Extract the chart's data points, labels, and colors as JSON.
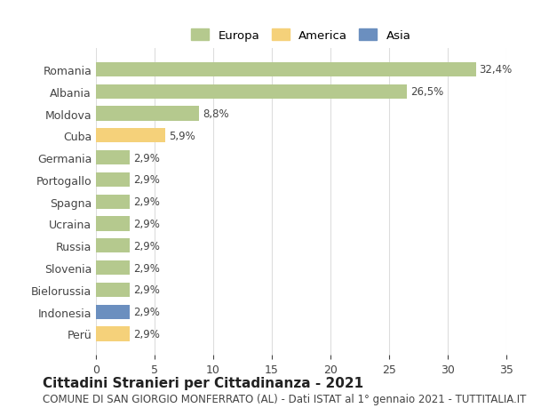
{
  "categories": [
    "Romania",
    "Albania",
    "Moldova",
    "Cuba",
    "Germania",
    "Portogallo",
    "Spagna",
    "Ucraina",
    "Russia",
    "Slovenia",
    "Bielorussia",
    "Indonesia",
    "Perü"
  ],
  "values": [
    32.4,
    26.5,
    8.8,
    5.9,
    2.9,
    2.9,
    2.9,
    2.9,
    2.9,
    2.9,
    2.9,
    2.9,
    2.9
  ],
  "labels": [
    "32,4%",
    "26,5%",
    "8,8%",
    "5,9%",
    "2,9%",
    "2,9%",
    "2,9%",
    "2,9%",
    "2,9%",
    "2,9%",
    "2,9%",
    "2,9%",
    "2,9%"
  ],
  "continents": [
    "Europa",
    "Europa",
    "Europa",
    "America",
    "Europa",
    "Europa",
    "Europa",
    "Europa",
    "Europa",
    "Europa",
    "Europa",
    "Asia",
    "America"
  ],
  "colors": {
    "Europa": "#b5c98e",
    "America": "#f5d17a",
    "Asia": "#6b8fbf"
  },
  "legend_items": [
    "Europa",
    "America",
    "Asia"
  ],
  "legend_colors": [
    "#b5c98e",
    "#f5d17a",
    "#6b8fbf"
  ],
  "title": "Cittadini Stranieri per Cittadinanza - 2021",
  "subtitle": "COMUNE DI SAN GIORGIO MONFERRATO (AL) - Dati ISTAT al 1° gennaio 2021 - TUTTITALIA.IT",
  "xlim": [
    0,
    35
  ],
  "xticks": [
    0,
    5,
    10,
    15,
    20,
    25,
    30,
    35
  ],
  "background_color": "#ffffff",
  "grid_color": "#dddddd",
  "bar_height": 0.65,
  "title_fontsize": 11,
  "subtitle_fontsize": 8.5,
  "label_fontsize": 8.5,
  "tick_fontsize": 9
}
